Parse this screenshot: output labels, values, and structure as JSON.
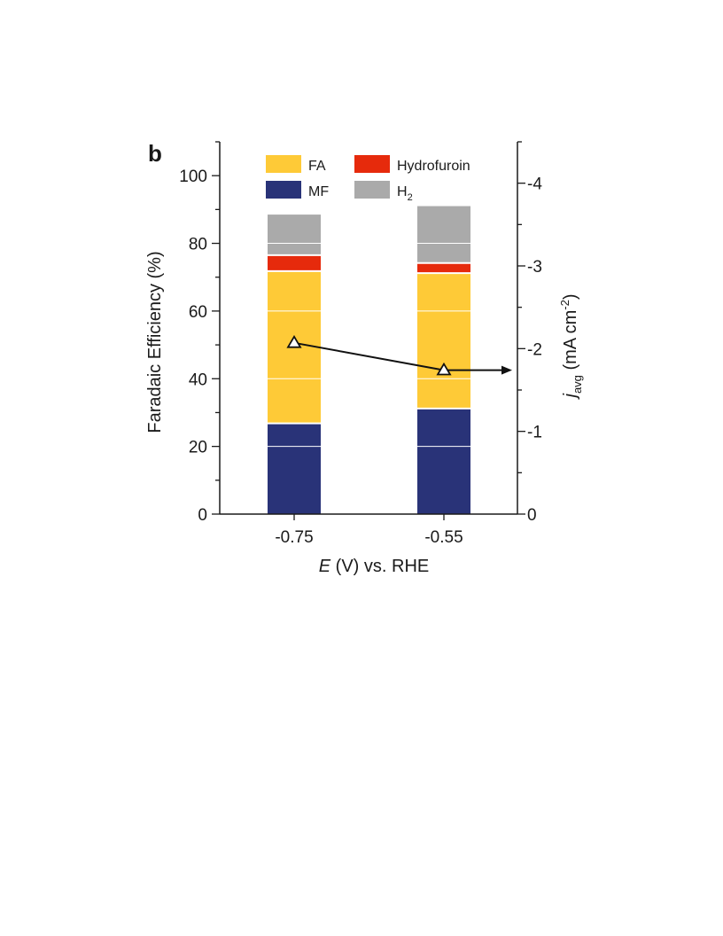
{
  "chart_data": {
    "type": "bar",
    "panel_label": "b",
    "stacked": true,
    "categories": [
      "-0.75",
      "-0.55"
    ],
    "xlabel": {
      "italic": "E",
      "rest": " (V) vs. RHE"
    },
    "ylabel": "Faradaic Efficiency (%)",
    "ylim": [
      0,
      110
    ],
    "yticks": [
      0,
      20,
      40,
      60,
      80,
      100
    ],
    "y2label": {
      "main": "j",
      "sub": "avg",
      "unit": " (mA cm",
      "sup": "-2",
      "close": ")"
    },
    "y2lim": [
      0,
      -4.5
    ],
    "y2ticks": [
      0,
      -1,
      -2,
      -3,
      -4
    ],
    "y2tick_labels": [
      "0",
      "-1",
      "-2",
      "-3",
      "-4"
    ],
    "legend_position": "top",
    "series": [
      {
        "name": "MF",
        "color": "#293378",
        "values": [
          26.8,
          31.2
        ]
      },
      {
        "name": "FA",
        "color": "#FECA37",
        "values": [
          45.0,
          40.0
        ]
      },
      {
        "name": "Hydrofuroin",
        "color": "#E62A0C",
        "values": [
          4.7,
          3.0
        ]
      },
      {
        "name": "H2",
        "color": "#AAAAAA",
        "values": [
          12.0,
          16.8
        ]
      }
    ],
    "legend_order": [
      "FA",
      "Hydrofuroin",
      "MF",
      "H2"
    ],
    "current_series": {
      "axis": "right",
      "marker": "open-triangle",
      "values": [
        -2.07,
        -1.74
      ]
    }
  }
}
